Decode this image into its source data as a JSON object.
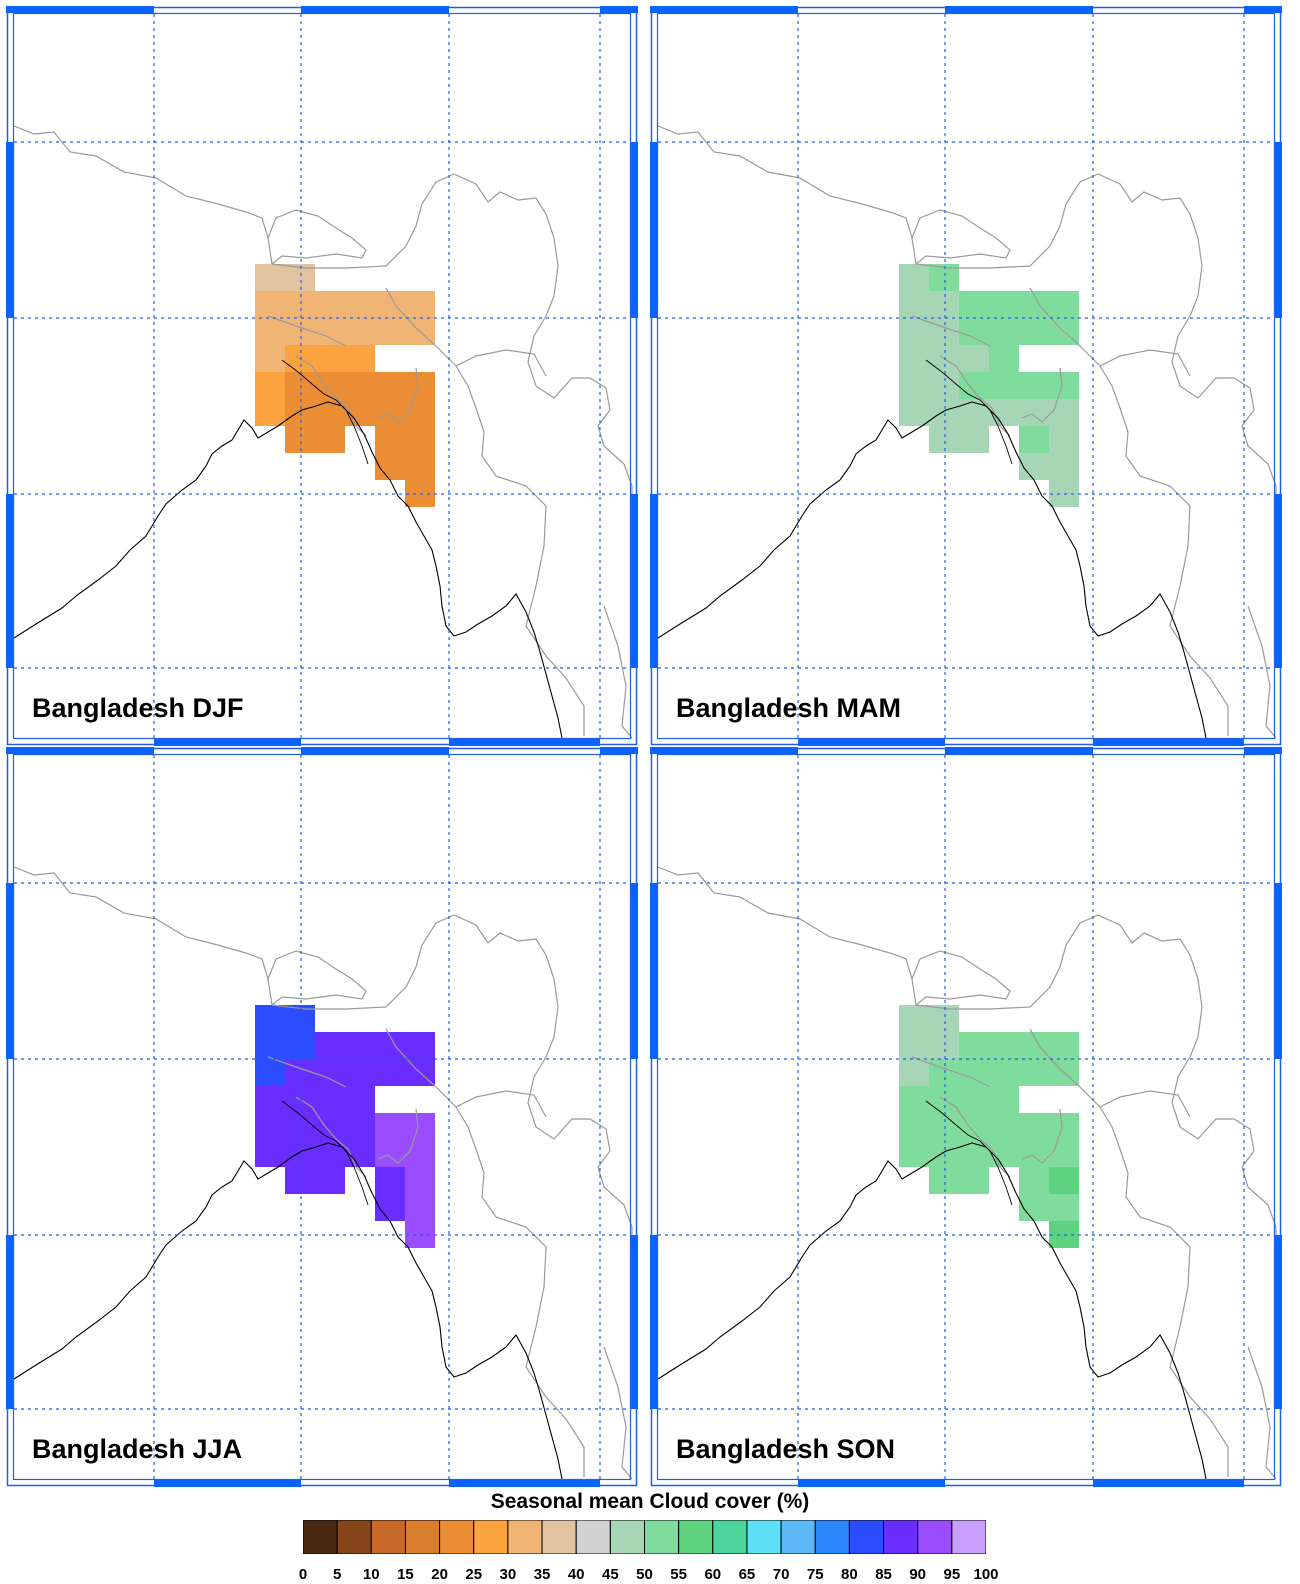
{
  "panels": [
    {
      "title": "Bangladesh DJF",
      "cells": [
        {
          "value": 35,
          "r": 0,
          "c": 0
        },
        {
          "value": 35,
          "r": 0,
          "c": 1
        },
        {
          "value": 30,
          "r": 1,
          "c": 0
        },
        {
          "value": 30,
          "r": 1,
          "c": 1
        },
        {
          "value": 30,
          "r": 1,
          "c": 2
        },
        {
          "value": 30,
          "r": 1,
          "c": 3
        },
        {
          "value": 30,
          "r": 1,
          "c": 4
        },
        {
          "value": 30,
          "r": 1,
          "c": 5
        },
        {
          "value": 30,
          "r": 2,
          "c": 0
        },
        {
          "value": 30,
          "r": 2,
          "c": 1
        },
        {
          "value": 30,
          "r": 2,
          "c": 2
        },
        {
          "value": 30,
          "r": 2,
          "c": 3
        },
        {
          "value": 30,
          "r": 2,
          "c": 4
        },
        {
          "value": 30,
          "r": 2,
          "c": 5
        },
        {
          "value": 30,
          "r": 3,
          "c": 0
        },
        {
          "value": 25,
          "r": 3,
          "c": 1
        },
        {
          "value": 25,
          "r": 3,
          "c": 2
        },
        {
          "value": 25,
          "r": 3,
          "c": 3
        },
        {
          "value": 25,
          "r": 4,
          "c": 0
        },
        {
          "value": 20,
          "r": 4,
          "c": 1
        },
        {
          "value": 20,
          "r": 4,
          "c": 2
        },
        {
          "value": 20,
          "r": 4,
          "c": 3
        },
        {
          "value": 20,
          "r": 4,
          "c": 4
        },
        {
          "value": 20,
          "r": 4,
          "c": 5
        },
        {
          "value": 25,
          "r": 5,
          "c": 0
        },
        {
          "value": 20,
          "r": 5,
          "c": 1
        },
        {
          "value": 20,
          "r": 5,
          "c": 2
        },
        {
          "value": 20,
          "r": 5,
          "c": 3
        },
        {
          "value": 20,
          "r": 5,
          "c": 4
        },
        {
          "value": 20,
          "r": 5,
          "c": 5
        },
        {
          "value": 20,
          "r": 6,
          "c": 1
        },
        {
          "value": 20,
          "r": 6,
          "c": 2
        },
        {
          "value": 20,
          "r": 6,
          "c": 4
        },
        {
          "value": 20,
          "r": 6,
          "c": 5
        },
        {
          "value": 20,
          "r": 7,
          "c": 4
        },
        {
          "value": 20,
          "r": 7,
          "c": 5
        },
        {
          "value": 20,
          "r": 8,
          "c": 5
        }
      ]
    },
    {
      "title": "Bangladesh MAM",
      "cells": [
        {
          "value": 45,
          "r": 0,
          "c": 0
        },
        {
          "value": 50,
          "r": 0,
          "c": 1
        },
        {
          "value": 45,
          "r": 1,
          "c": 0
        },
        {
          "value": 45,
          "r": 1,
          "c": 1
        },
        {
          "value": 50,
          "r": 1,
          "c": 2
        },
        {
          "value": 50,
          "r": 1,
          "c": 3
        },
        {
          "value": 50,
          "r": 1,
          "c": 4
        },
        {
          "value": 50,
          "r": 1,
          "c": 5
        },
        {
          "value": 45,
          "r": 2,
          "c": 0
        },
        {
          "value": 45,
          "r": 2,
          "c": 1
        },
        {
          "value": 50,
          "r": 2,
          "c": 2
        },
        {
          "value": 50,
          "r": 2,
          "c": 3
        },
        {
          "value": 50,
          "r": 2,
          "c": 4
        },
        {
          "value": 50,
          "r": 2,
          "c": 5
        },
        {
          "value": 45,
          "r": 3,
          "c": 0
        },
        {
          "value": 45,
          "r": 3,
          "c": 1
        },
        {
          "value": 45,
          "r": 3,
          "c": 2
        },
        {
          "value": 50,
          "r": 3,
          "c": 3
        },
        {
          "value": 45,
          "r": 4,
          "c": 0
        },
        {
          "value": 45,
          "r": 4,
          "c": 1
        },
        {
          "value": 50,
          "r": 4,
          "c": 2
        },
        {
          "value": 50,
          "r": 4,
          "c": 3
        },
        {
          "value": 50,
          "r": 4,
          "c": 4
        },
        {
          "value": 50,
          "r": 4,
          "c": 5
        },
        {
          "value": 45,
          "r": 5,
          "c": 0
        },
        {
          "value": 45,
          "r": 5,
          "c": 1
        },
        {
          "value": 45,
          "r": 5,
          "c": 2
        },
        {
          "value": 45,
          "r": 5,
          "c": 3
        },
        {
          "value": 45,
          "r": 5,
          "c": 4
        },
        {
          "value": 45,
          "r": 5,
          "c": 5
        },
        {
          "value": 45,
          "r": 6,
          "c": 1
        },
        {
          "value": 45,
          "r": 6,
          "c": 2
        },
        {
          "value": 50,
          "r": 6,
          "c": 4
        },
        {
          "value": 45,
          "r": 6,
          "c": 5
        },
        {
          "value": 45,
          "r": 7,
          "c": 4
        },
        {
          "value": 45,
          "r": 7,
          "c": 5
        },
        {
          "value": 45,
          "r": 8,
          "c": 5
        }
      ]
    },
    {
      "title": "Bangladesh JJA",
      "cells": [
        {
          "value": 80,
          "r": 0,
          "c": 0
        },
        {
          "value": 80,
          "r": 0,
          "c": 1
        },
        {
          "value": 80,
          "r": 1,
          "c": 0
        },
        {
          "value": 80,
          "r": 1,
          "c": 1
        },
        {
          "value": 85,
          "r": 1,
          "c": 2
        },
        {
          "value": 85,
          "r": 1,
          "c": 3
        },
        {
          "value": 85,
          "r": 1,
          "c": 4
        },
        {
          "value": 85,
          "r": 1,
          "c": 5
        },
        {
          "value": 80,
          "r": 2,
          "c": 0
        },
        {
          "value": 85,
          "r": 2,
          "c": 1
        },
        {
          "value": 85,
          "r": 2,
          "c": 2
        },
        {
          "value": 85,
          "r": 2,
          "c": 3
        },
        {
          "value": 85,
          "r": 2,
          "c": 4
        },
        {
          "value": 85,
          "r": 2,
          "c": 5
        },
        {
          "value": 85,
          "r": 3,
          "c": 0
        },
        {
          "value": 85,
          "r": 3,
          "c": 1
        },
        {
          "value": 85,
          "r": 3,
          "c": 2
        },
        {
          "value": 85,
          "r": 3,
          "c": 3
        },
        {
          "value": 85,
          "r": 4,
          "c": 0
        },
        {
          "value": 85,
          "r": 4,
          "c": 1
        },
        {
          "value": 85,
          "r": 4,
          "c": 2
        },
        {
          "value": 85,
          "r": 4,
          "c": 3
        },
        {
          "value": 90,
          "r": 4,
          "c": 4
        },
        {
          "value": 90,
          "r": 4,
          "c": 5
        },
        {
          "value": 85,
          "r": 5,
          "c": 0
        },
        {
          "value": 85,
          "r": 5,
          "c": 1
        },
        {
          "value": 85,
          "r": 5,
          "c": 2
        },
        {
          "value": 85,
          "r": 5,
          "c": 3
        },
        {
          "value": 90,
          "r": 5,
          "c": 4
        },
        {
          "value": 90,
          "r": 5,
          "c": 5
        },
        {
          "value": 85,
          "r": 6,
          "c": 1
        },
        {
          "value": 85,
          "r": 6,
          "c": 2
        },
        {
          "value": 85,
          "r": 6,
          "c": 4
        },
        {
          "value": 90,
          "r": 6,
          "c": 5
        },
        {
          "value": 85,
          "r": 7,
          "c": 4
        },
        {
          "value": 90,
          "r": 7,
          "c": 5
        },
        {
          "value": 90,
          "r": 8,
          "c": 5
        }
      ]
    },
    {
      "title": "Bangladesh SON",
      "cells": [
        {
          "value": 45,
          "r": 0,
          "c": 0
        },
        {
          "value": 45,
          "r": 0,
          "c": 1
        },
        {
          "value": 45,
          "r": 1,
          "c": 0
        },
        {
          "value": 45,
          "r": 1,
          "c": 1
        },
        {
          "value": 50,
          "r": 1,
          "c": 2
        },
        {
          "value": 50,
          "r": 1,
          "c": 3
        },
        {
          "value": 50,
          "r": 1,
          "c": 4
        },
        {
          "value": 50,
          "r": 1,
          "c": 5
        },
        {
          "value": 45,
          "r": 2,
          "c": 0
        },
        {
          "value": 50,
          "r": 2,
          "c": 1
        },
        {
          "value": 50,
          "r": 2,
          "c": 2
        },
        {
          "value": 50,
          "r": 2,
          "c": 3
        },
        {
          "value": 50,
          "r": 2,
          "c": 4
        },
        {
          "value": 50,
          "r": 2,
          "c": 5
        },
        {
          "value": 50,
          "r": 3,
          "c": 0
        },
        {
          "value": 50,
          "r": 3,
          "c": 1
        },
        {
          "value": 50,
          "r": 3,
          "c": 2
        },
        {
          "value": 50,
          "r": 3,
          "c": 3
        },
        {
          "value": 50,
          "r": 4,
          "c": 0
        },
        {
          "value": 50,
          "r": 4,
          "c": 1
        },
        {
          "value": 50,
          "r": 4,
          "c": 2
        },
        {
          "value": 50,
          "r": 4,
          "c": 3
        },
        {
          "value": 50,
          "r": 4,
          "c": 4
        },
        {
          "value": 50,
          "r": 4,
          "c": 5
        },
        {
          "value": 50,
          "r": 5,
          "c": 0
        },
        {
          "value": 50,
          "r": 5,
          "c": 1
        },
        {
          "value": 50,
          "r": 5,
          "c": 2
        },
        {
          "value": 50,
          "r": 5,
          "c": 3
        },
        {
          "value": 50,
          "r": 5,
          "c": 4
        },
        {
          "value": 50,
          "r": 5,
          "c": 5
        },
        {
          "value": 50,
          "r": 6,
          "c": 1
        },
        {
          "value": 50,
          "r": 6,
          "c": 2
        },
        {
          "value": 50,
          "r": 6,
          "c": 4
        },
        {
          "value": 55,
          "r": 6,
          "c": 5
        },
        {
          "value": 50,
          "r": 7,
          "c": 4
        },
        {
          "value": 50,
          "r": 7,
          "c": 5
        },
        {
          "value": 55,
          "r": 8,
          "c": 5
        }
      ]
    }
  ],
  "colorbar": {
    "title": "Seasonal mean Cloud cover (%)",
    "levels": [
      "0",
      "5",
      "10",
      "15",
      "20",
      "25",
      "30",
      "35",
      "40",
      "45",
      "50",
      "55",
      "60",
      "65",
      "70",
      "75",
      "80",
      "85",
      "90",
      "95",
      "100"
    ],
    "colors": [
      "#4a2a12",
      "#864619",
      "#c8692a",
      "#d97d2e",
      "#ea8d35",
      "#fba33f",
      "#f0b474",
      "#e3c4a0",
      "#d2d2d2",
      "#a7d6b6",
      "#7fdc9c",
      "#5ed37f",
      "#4dd49a",
      "#5ce0f7",
      "#5cb8f7",
      "#2d88ff",
      "#2b4dff",
      "#6a2dff",
      "#9a4dff",
      "#c89eff"
    ]
  },
  "map_colors": {
    "grid": "#1f5fe8",
    "frame": "#1f5fe8",
    "frame_accent": "#0a63ff",
    "border": "#9a9a9a",
    "coast": "#000000"
  }
}
